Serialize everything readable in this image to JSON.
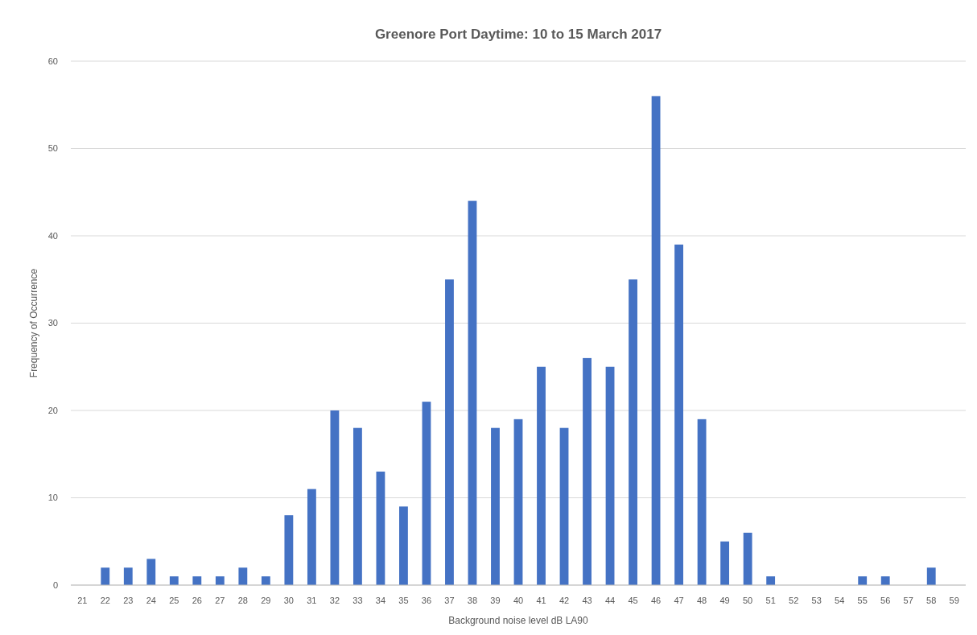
{
  "chart_data": {
    "type": "bar",
    "title": "Greenore Port Daytime: 10 to 15 March 2017",
    "xlabel": "Background noise level dB LA90",
    "ylabel": "Frequency of Occurrence",
    "categories": [
      "21",
      "22",
      "23",
      "24",
      "25",
      "26",
      "27",
      "28",
      "29",
      "30",
      "31",
      "32",
      "33",
      "34",
      "35",
      "36",
      "37",
      "38",
      "39",
      "40",
      "41",
      "42",
      "43",
      "44",
      "45",
      "46",
      "47",
      "48",
      "49",
      "50",
      "51",
      "52",
      "53",
      "54",
      "55",
      "56",
      "57",
      "58",
      "59"
    ],
    "values": [
      0,
      2,
      2,
      3,
      1,
      1,
      1,
      2,
      1,
      8,
      11,
      20,
      18,
      13,
      9,
      21,
      35,
      44,
      18,
      19,
      25,
      18,
      26,
      25,
      35,
      56,
      39,
      19,
      5,
      6,
      1,
      0,
      0,
      0,
      1,
      1,
      0,
      2,
      0
    ],
    "color": "#4472c4",
    "ylim": [
      0,
      60
    ],
    "yticks": [
      0,
      10,
      20,
      30,
      40,
      50,
      60
    ],
    "grid": "y"
  }
}
